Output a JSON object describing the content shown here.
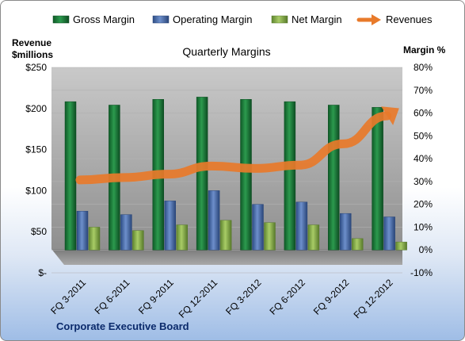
{
  "chart_data": {
    "type": "bar",
    "title": "Quarterly Margins",
    "footer": "Corporate Executive Board",
    "left_axis_title": [
      "Revenue",
      "$millions"
    ],
    "right_axis_title": "Margin %",
    "categories": [
      "FQ 3-2011",
      "FQ 6-2011",
      "FQ 9-2011",
      "FQ 12-2011",
      "FQ 3-2012",
      "FQ 6-2012",
      "FQ 9-2012",
      "FQ 12-2012"
    ],
    "left_axis": {
      "min": 0,
      "max": 250,
      "step": 50,
      "tick_labels": [
        "$-",
        "$50",
        "$100",
        "$150",
        "$200",
        "$250"
      ]
    },
    "right_axis": {
      "min": -10,
      "max": 80,
      "step": 10,
      "tick_labels": [
        "-10%",
        "0%",
        "10%",
        "20%",
        "30%",
        "40%",
        "50%",
        "60%",
        "70%",
        "80%"
      ]
    },
    "legend_position": "top",
    "series": [
      {
        "name": "Gross Margin",
        "axis": "right",
        "color": "#1e7a3c",
        "values": [
          65,
          63.5,
          66,
          67,
          66,
          65,
          63.5,
          62.5
        ]
      },
      {
        "name": "Operating Margin",
        "axis": "right",
        "color": "#4a6eae",
        "values": [
          17,
          15.5,
          21.5,
          26,
          20,
          21,
          16,
          14.5
        ]
      },
      {
        "name": "Net Margin",
        "axis": "right",
        "color": "#8db34a",
        "values": [
          10,
          8.5,
          11,
          13,
          12,
          11,
          5,
          3.5
        ]
      },
      {
        "name": "Revenues",
        "axis": "left",
        "color": "#e87a2a",
        "type": "line",
        "values": [
          113,
          116,
          120,
          130,
          127,
          131,
          157,
          191
        ]
      }
    ]
  }
}
